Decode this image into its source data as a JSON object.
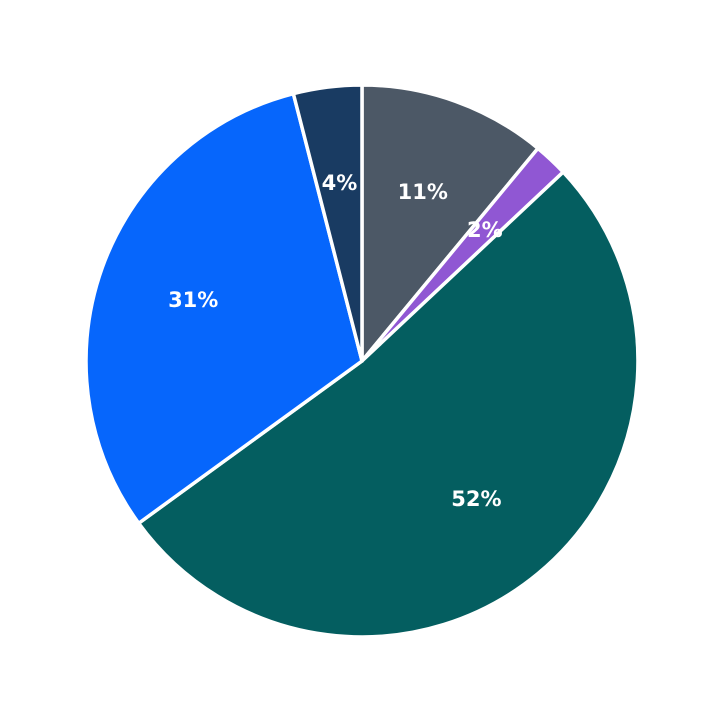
{
  "chart_data": {
    "type": "pie",
    "title": "",
    "background": "#FFFFFF",
    "direction": "clockwise",
    "start_angle": "12 o'clock",
    "separator_color": "#FFFFFF",
    "label_color": "#FFFFFF",
    "label_radius_fraction": 0.65,
    "legend": null,
    "slices": [
      {
        "label": "11%",
        "value": 11,
        "color": "#4C5866"
      },
      {
        "label": "2%",
        "value": 2,
        "color": "#9057D3"
      },
      {
        "label": "52%",
        "value": 52,
        "color": "#045E60"
      },
      {
        "label": "31%",
        "value": 31,
        "color": "#0666FC"
      },
      {
        "label": "4%",
        "value": 4,
        "color": "#193B62"
      }
    ]
  }
}
